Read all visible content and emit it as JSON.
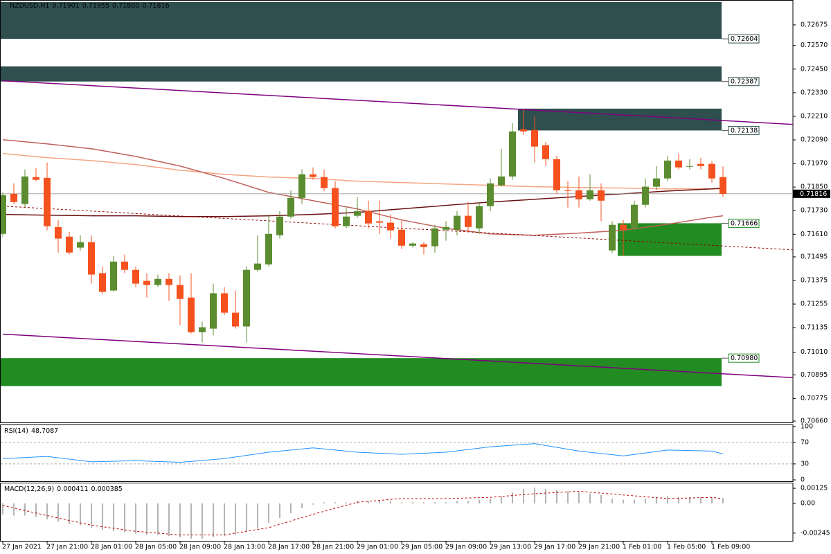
{
  "chart_data": [
    {
      "type": "candlestick",
      "title": "NZDUSD,H1",
      "header_labels": [
        "0.71901",
        "0.71955",
        "0.71800",
        "0.71816"
      ],
      "categories": [
        "27 Jan 2021",
        null,
        null,
        null,
        "27 Jan 21:00",
        null,
        null,
        null,
        "28 Jan 01:00",
        null,
        null,
        null,
        "28 Jan 05:00",
        null,
        null,
        null,
        "28 Jan 09:00",
        null,
        null,
        null,
        "28 Jan 13:00",
        null,
        null,
        null,
        "28 Jan 17:00",
        null,
        null,
        null,
        "28 Jan 21:00",
        null,
        null,
        null,
        "29 Jan 01:00",
        null,
        null,
        null,
        "29 Jan 05:00",
        null,
        null,
        null,
        "29 Jan 09:00",
        null,
        null,
        null,
        "29 Jan 13:00",
        null,
        null,
        null,
        "29 Jan 17:00",
        null,
        null,
        null,
        "29 Jan 21:00",
        null,
        null,
        null,
        "1 Feb 01:00",
        null,
        null,
        null,
        "1 Feb 05:00",
        null,
        null,
        null,
        "1 Feb 09:00",
        null
      ],
      "open": [
        0.71612,
        0.71816,
        0.71764,
        0.71901,
        0.71897,
        0.71647,
        0.71598,
        0.71542,
        0.7157,
        0.71412,
        0.71324,
        0.71471,
        0.71429,
        0.71373,
        0.71352,
        0.71383,
        0.71352,
        0.71288,
        0.71112,
        0.7113,
        0.7131,
        0.71211,
        0.71141,
        0.71429,
        0.71457,
        0.71605,
        0.717,
        0.71795,
        0.71915,
        0.71901,
        0.71845,
        0.71651,
        0.71704,
        0.71728,
        0.71676,
        0.71669,
        0.71633,
        0.71552,
        0.71559,
        0.71549,
        0.71633,
        0.71633,
        0.71704,
        0.7164,
        0.71753,
        0.71859,
        0.71904,
        0.72144,
        0.7214,
        0.72063,
        0.71992,
        0.71834,
        0.71834,
        0.71788,
        0.71834,
        0.71528,
        0.71658,
        0.7164,
        0.7176,
        0.71852,
        0.71894,
        0.71985,
        0.71954,
        0.71968,
        0.71968,
        0.71901
      ],
      "high": [
        0.71823,
        0.71869,
        0.7194,
        0.71947,
        0.71975,
        0.71683,
        0.71623,
        0.71605,
        0.71605,
        0.71447,
        0.715,
        0.71507,
        0.71447,
        0.71412,
        0.71405,
        0.71412,
        0.71401,
        0.71412,
        0.71165,
        0.71359,
        0.71341,
        0.71324,
        0.71447,
        0.71605,
        0.71711,
        0.71728,
        0.71834,
        0.7194,
        0.7195,
        0.7194,
        0.7188,
        0.71746,
        0.71799,
        0.71781,
        0.71781,
        0.71711,
        0.71683,
        0.7157,
        0.7157,
        0.71658,
        0.71676,
        0.71728,
        0.71774,
        0.71774,
        0.71894,
        0.72045,
        0.72175,
        0.72249,
        0.72211,
        0.7208,
        0.7201,
        0.7188,
        0.71904,
        0.71915,
        0.71869,
        0.71676,
        0.71683,
        0.71781,
        0.71894,
        0.71957,
        0.7201,
        0.72021,
        0.71992,
        0.71999,
        0.71982,
        0.71955
      ],
      "low": [
        0.71598,
        0.71764,
        0.71746,
        0.7188,
        0.7163,
        0.71517,
        0.71507,
        0.71528,
        0.71359,
        0.71306,
        0.71317,
        0.71412,
        0.71341,
        0.71288,
        0.71341,
        0.71271,
        0.71148,
        0.71105,
        0.7106,
        0.71095,
        0.712,
        0.7113,
        0.7106,
        0.71419,
        0.71447,
        0.71588,
        0.7169,
        0.71764,
        0.71887,
        0.7183,
        0.7164,
        0.7164,
        0.71693,
        0.7164,
        0.71612,
        0.71588,
        0.71535,
        0.71542,
        0.71507,
        0.71517,
        0.71577,
        0.71605,
        0.71623,
        0.71612,
        0.71728,
        0.71852,
        0.71887,
        0.72116,
        0.71975,
        0.71957,
        0.71816,
        0.71746,
        0.71746,
        0.71781,
        0.71676,
        0.71514,
        0.715,
        0.71623,
        0.71746,
        0.71834,
        0.7188,
        0.7194,
        0.7194,
        0.7194,
        0.71873,
        0.718
      ],
      "close": [
        0.71809,
        0.71774,
        0.71904,
        0.71887,
        0.71651,
        0.71588,
        0.71517,
        0.7157,
        0.71405,
        0.71317,
        0.71471,
        0.71429,
        0.71359,
        0.71352,
        0.71383,
        0.71352,
        0.71281,
        0.71112,
        0.71137,
        0.7131,
        0.71211,
        0.71141,
        0.71429,
        0.71461,
        0.71612,
        0.717,
        0.71795,
        0.71915,
        0.71901,
        0.71845,
        0.71651,
        0.717,
        0.71728,
        0.71665,
        0.71669,
        0.7163,
        0.71552,
        0.71563,
        0.71545,
        0.7164,
        0.71647,
        0.71704,
        0.71647,
        0.71753,
        0.71869,
        0.71904,
        0.72133,
        0.72133,
        0.72056,
        0.71992,
        0.71834,
        0.7183,
        0.71788,
        0.71834,
        0.71781,
        0.71658,
        0.71633,
        0.7176,
        0.71852,
        0.71894,
        0.71985,
        0.7195,
        0.71957,
        0.71957,
        0.71894,
        0.71816
      ],
      "up_color": "#5b8c2f",
      "down_color": "#f4511e",
      "ylim": [
        0.70653,
        0.72791
      ],
      "yticks": [
        0.72675,
        {
          "value": 0.7257,
          "label": "0.72570"
        },
        {
          "value": 0.7245,
          "label": "0.72450"
        },
        {
          "value": 0.7233,
          "label": "0.72330"
        },
        {
          "value": 0.7221,
          "label": "0.72210"
        },
        {
          "value": 0.7209,
          "label": "0.72090"
        },
        {
          "value": 0.7197,
          "label": "0.71970"
        },
        {
          "value": 0.7185,
          "label": "0.71850"
        },
        {
          "value": 0.7173,
          "label": "0.71730"
        },
        {
          "value": 0.7161,
          "label": "0.71610"
        },
        0.71495,
        0.71375,
        0.71255,
        0.71135,
        {
          "value": 0.7101,
          "label": "0.71010"
        },
        0.70895,
        0.70775,
        {
          "value": 0.7066,
          "label": "0.70660"
        }
      ],
      "current_price": 0.71816,
      "zones": [
        {
          "top": 0.72791,
          "bottom": 0.72604,
          "from": 0,
          "color": "#2f4f4f",
          "label_edge": "bottom",
          "label": "0.72604"
        },
        {
          "top": 0.72464,
          "bottom": 0.72387,
          "from": 0,
          "color": "#2f4f4f",
          "label_edge": "bottom",
          "label": "0.72387"
        },
        {
          "top": 0.72249,
          "bottom": 0.72138,
          "from": 47,
          "color": "#2f4f4f",
          "label_edge": "bottom",
          "label": "0.72138"
        },
        {
          "top": 0.71666,
          "bottom": 0.715,
          "from": 56,
          "color": "#228b22",
          "label_edge": "top",
          "label": "0.71666"
        },
        {
          "top": 0.7098,
          "bottom": 0.70838,
          "from": 0,
          "color": "#228b22",
          "label_edge": "top",
          "label": "0.70980"
        }
      ],
      "moving_averages": [
        {
          "color": "#f4a582",
          "x": [
            0,
            4,
            8,
            12,
            16,
            20,
            24,
            28,
            32,
            36,
            40,
            44,
            48,
            52,
            56,
            60,
            64,
            65
          ],
          "values": [
            0.72021,
            0.72,
            0.71985,
            0.71964,
            0.71936,
            0.71915,
            0.71901,
            0.71894,
            0.7188,
            0.71873,
            0.71866,
            0.71859,
            0.71852,
            0.71848,
            0.71845,
            0.71841,
            0.71841,
            0.71841
          ]
        },
        {
          "color": "#c0605a",
          "x": [
            0,
            4,
            8,
            12,
            16,
            20,
            24,
            28,
            32,
            36,
            40,
            44,
            48,
            52,
            56,
            60,
            64,
            65
          ],
          "values": [
            0.72091,
            0.7207,
            0.72045,
            0.72006,
            0.71957,
            0.71894,
            0.71823,
            0.71781,
            0.71739,
            0.71683,
            0.7164,
            0.71612,
            0.71605,
            0.71616,
            0.7163,
            0.71661,
            0.71697,
            0.71704
          ]
        },
        {
          "color": "#6b1010",
          "x": [
            0,
            4,
            8,
            12,
            16,
            20,
            24,
            28,
            32,
            36,
            40,
            44,
            48,
            52,
            56,
            60,
            64,
            65
          ],
          "values": [
            0.71711,
            0.71707,
            0.71704,
            0.71704,
            0.717,
            0.717,
            0.71704,
            0.71711,
            0.71721,
            0.71739,
            0.71757,
            0.71774,
            0.71788,
            0.71802,
            0.71816,
            0.7183,
            0.71841,
            0.71845
          ]
        }
      ],
      "trendlines": [
        {
          "color": "#800080",
          "dashed": false,
          "x": [
            0,
            71.6
          ],
          "values": [
            0.72391,
            0.72168
          ]
        },
        {
          "color": "#800080",
          "dashed": false,
          "x": [
            0,
            71.6
          ],
          "values": [
            0.71102,
            0.7088
          ]
        },
        {
          "color": "#8b0000",
          "dashed": true,
          "x": [
            0,
            71.6
          ],
          "values": [
            0.71753,
            0.7153
          ]
        }
      ]
    },
    {
      "type": "line",
      "title": "RSI(14)",
      "x": [
        0,
        4,
        8,
        12,
        16,
        20,
        24,
        28,
        32,
        36,
        40,
        44,
        48,
        52,
        56,
        60,
        64,
        65
      ],
      "series": [
        {
          "color": "#1e90ff",
          "values": [
            40,
            44,
            34,
            36,
            33,
            40,
            52,
            60,
            52,
            48,
            52,
            62,
            68,
            54,
            45,
            56,
            54,
            48.7087
          ]
        }
      ],
      "ylim": [
        0,
        100
      ],
      "yticks": [
        0,
        30,
        70,
        100
      ],
      "levels": [
        30,
        70
      ]
    },
    {
      "type": "macd",
      "title": "MACD(12,26,9)",
      "histogram": {
        "color": "#b4b4b4",
        "values": [
          -0.0009,
          -0.001,
          -0.001,
          -0.0011,
          -0.0013,
          -0.0015,
          -0.0017,
          -0.0018,
          -0.002,
          -0.0022,
          -0.0023,
          -0.0024,
          -0.0025,
          -0.0026,
          -0.0026,
          -0.0027,
          -0.0028,
          -0.0029,
          -0.0029,
          -0.0028,
          -0.0027,
          -0.0026,
          -0.0023,
          -0.002,
          -0.0016,
          -0.0012,
          -0.0008,
          -0.0004,
          -0.0001,
          0.0001,
          0.0001,
          0.0001,
          0.0002,
          0.0002,
          0.0002,
          0.0002,
          0.0001,
          0.0001,
          0.0001,
          0.0001,
          0.0001,
          0.0002,
          0.0002,
          0.0003,
          0.0004,
          0.0006,
          0.0009,
          0.0012,
          0.0013,
          0.0012,
          0.0011,
          0.001,
          0.0009,
          0.0008,
          0.0007,
          0.0004,
          0.0003,
          0.0003,
          0.0004,
          0.0005,
          0.0006,
          0.0005,
          0.0005,
          0.0005,
          0.0005,
          0.000411
        ]
      },
      "signal": {
        "color": "#c00000",
        "x": [
          0,
          4,
          8,
          12,
          16,
          20,
          24,
          28,
          32,
          36,
          40,
          44,
          48,
          52,
          56,
          60,
          64,
          65
        ],
        "values": [
          -0.00017,
          -0.001,
          -0.0018,
          -0.0023,
          -0.0026,
          -0.0026,
          -0.002,
          -0.0009,
          0.0001,
          0.0004,
          0.0004,
          0.0005,
          0.0008,
          0.001,
          0.0007,
          0.0004,
          0.0005,
          0.000385
        ]
      },
      "ylim": [
        -0.00303,
        0.00154
      ],
      "yticks": [
        0.00125,
        {
          "value": 0,
          "label": "0.00"
        },
        -0.00245
      ]
    }
  ]
}
